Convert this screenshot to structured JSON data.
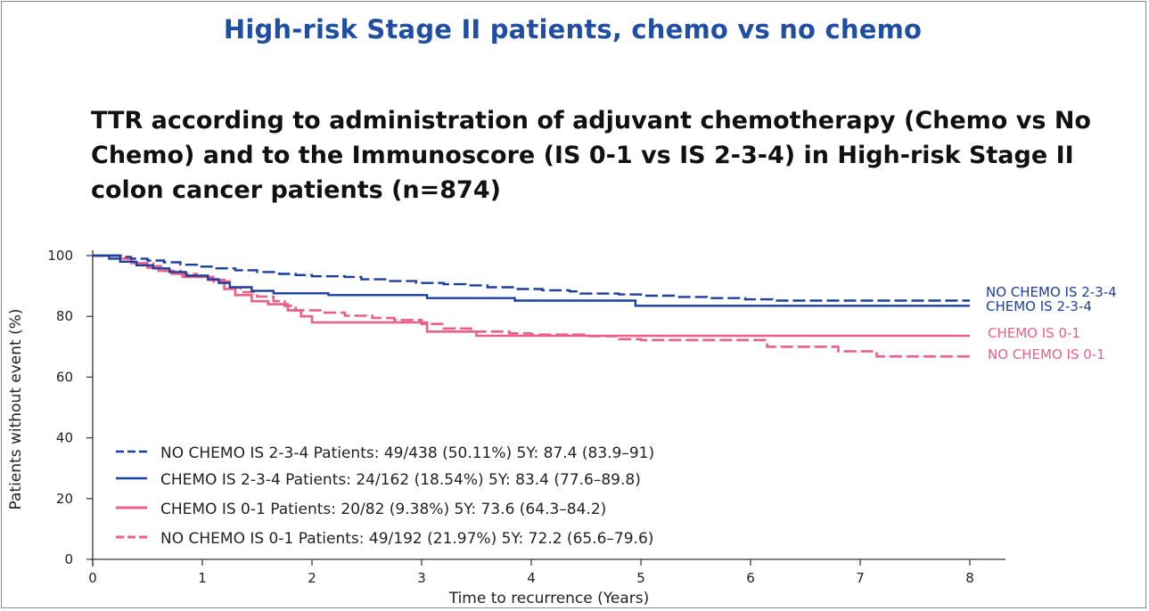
{
  "title": "High-risk Stage II patients, chemo vs no chemo",
  "subtitle": "TTR according to administration of adjuvant chemotherapy (Chemo vs No Chemo) and to the Immunoscore (IS 0-1 vs IS 2-3-4) in High-risk Stage II colon cancer patients (n=874)",
  "colors": {
    "blue": "#1a3f9e",
    "pink": "#ec5f86"
  },
  "chart_data": {
    "type": "line",
    "subtype": "kaplan-meier step",
    "xlabel": "Time to recurrence (Years)",
    "ylabel": "Patients without event (%)",
    "xlim": [
      0,
      8
    ],
    "ylim": [
      0,
      100
    ],
    "xticks": [
      0,
      1,
      2,
      3,
      4,
      5,
      6,
      7,
      8
    ],
    "yticks": [
      0,
      20,
      40,
      60,
      80,
      100
    ],
    "series": [
      {
        "name": "NO CHEMO IS 2-3-4",
        "end_label": "NO CHEMO IS 2-3-4",
        "color": "blue",
        "dash": true,
        "legend": "NO CHEMO IS 2-3-4 Patients:  49/438 (50.11%) 5Y: 87.4 (83.9–91)",
        "points": [
          [
            0,
            100
          ],
          [
            0.1,
            100
          ],
          [
            0.25,
            99.6
          ],
          [
            0.35,
            99
          ],
          [
            0.5,
            98.4
          ],
          [
            0.65,
            97.8
          ],
          [
            0.8,
            97
          ],
          [
            0.95,
            96.4
          ],
          [
            1.1,
            95.8
          ],
          [
            1.3,
            95.2
          ],
          [
            1.5,
            94.6
          ],
          [
            1.7,
            94
          ],
          [
            1.85,
            93.6
          ],
          [
            2.0,
            93.2
          ],
          [
            2.3,
            93
          ],
          [
            2.45,
            92.2
          ],
          [
            2.7,
            91.6
          ],
          [
            2.95,
            91
          ],
          [
            3.2,
            90.6
          ],
          [
            3.4,
            90.2
          ],
          [
            3.6,
            89.6
          ],
          [
            3.85,
            89
          ],
          [
            4.1,
            88.6
          ],
          [
            4.35,
            88.2
          ],
          [
            4.45,
            87.5
          ],
          [
            4.8,
            87.2
          ],
          [
            5.0,
            86.8
          ],
          [
            5.3,
            86.4
          ],
          [
            5.6,
            86
          ],
          [
            5.95,
            85.6
          ],
          [
            6.2,
            85.2
          ],
          [
            7.0,
            85.2
          ],
          [
            8.0,
            85.2
          ]
        ]
      },
      {
        "name": "CHEMO IS 2-3-4",
        "end_label": "CHEMO IS 2-3-4",
        "color": "blue",
        "dash": false,
        "legend": "CHEMO IS 2-3-4 Patients:  24/162 (18.54%) 5Y: 83.4 (77.6–89.8)",
        "points": [
          [
            0,
            100
          ],
          [
            0.08,
            100
          ],
          [
            0.15,
            99
          ],
          [
            0.25,
            98
          ],
          [
            0.4,
            96.8
          ],
          [
            0.55,
            95.8
          ],
          [
            0.7,
            94.6
          ],
          [
            0.85,
            93.4
          ],
          [
            1.05,
            92.2
          ],
          [
            1.15,
            91
          ],
          [
            1.25,
            89.6
          ],
          [
            1.45,
            88.4
          ],
          [
            1.65,
            87.6
          ],
          [
            2.0,
            87.6
          ],
          [
            2.15,
            87
          ],
          [
            2.8,
            87
          ],
          [
            3.05,
            86
          ],
          [
            3.7,
            86
          ],
          [
            3.85,
            85.2
          ],
          [
            4.85,
            85.2
          ],
          [
            4.95,
            83.5
          ],
          [
            6.0,
            83.5
          ],
          [
            8.0,
            83.5
          ]
        ]
      },
      {
        "name": "CHEMO IS 0-1",
        "end_label": "CHEMO IS 0-1",
        "color": "pink",
        "dash": false,
        "legend": "CHEMO IS 0-1 Patients:  20/82 (9.38%) 5Y: 73.6 (64.3–84.2)",
        "points": [
          [
            0,
            100
          ],
          [
            0.25,
            99
          ],
          [
            0.35,
            97.5
          ],
          [
            0.5,
            96
          ],
          [
            0.6,
            95
          ],
          [
            0.72,
            94
          ],
          [
            0.82,
            93
          ],
          [
            1.05,
            92
          ],
          [
            1.2,
            89
          ],
          [
            1.3,
            87
          ],
          [
            1.45,
            85
          ],
          [
            1.6,
            84
          ],
          [
            1.78,
            82
          ],
          [
            1.9,
            80
          ],
          [
            2.0,
            78
          ],
          [
            2.95,
            78
          ],
          [
            3.05,
            75
          ],
          [
            3.35,
            75
          ],
          [
            3.5,
            73.6
          ],
          [
            8.0,
            73.6
          ]
        ]
      },
      {
        "name": "NO CHEMO IS 0-1",
        "end_label": "NO CHEMO IS 0-1",
        "color": "pink",
        "dash": true,
        "legend": "NO CHEMO IS 0-1 Patients:  49/192 (21.97%) 5Y: 72.2 (65.6–79.6)",
        "points": [
          [
            0,
            100
          ],
          [
            0.2,
            100
          ],
          [
            0.3,
            99
          ],
          [
            0.4,
            97.5
          ],
          [
            0.55,
            96.5
          ],
          [
            0.65,
            95
          ],
          [
            0.8,
            94
          ],
          [
            0.95,
            93
          ],
          [
            1.1,
            91.5
          ],
          [
            1.25,
            89.5
          ],
          [
            1.35,
            88
          ],
          [
            1.5,
            86.5
          ],
          [
            1.65,
            85
          ],
          [
            1.75,
            83.5
          ],
          [
            1.85,
            82
          ],
          [
            2.1,
            81.2
          ],
          [
            2.3,
            80.2
          ],
          [
            2.55,
            79.5
          ],
          [
            2.75,
            78.8
          ],
          [
            3.0,
            77.5
          ],
          [
            3.2,
            76
          ],
          [
            3.45,
            75
          ],
          [
            3.8,
            74.4
          ],
          [
            4.0,
            74
          ],
          [
            4.5,
            73.5
          ],
          [
            4.8,
            72.5
          ],
          [
            5.0,
            72.2
          ],
          [
            6.0,
            72.2
          ],
          [
            6.15,
            70
          ],
          [
            6.7,
            70
          ],
          [
            6.8,
            68.5
          ],
          [
            7.1,
            68.5
          ],
          [
            7.15,
            66.8
          ],
          [
            8.0,
            66.8
          ]
        ]
      }
    ]
  }
}
